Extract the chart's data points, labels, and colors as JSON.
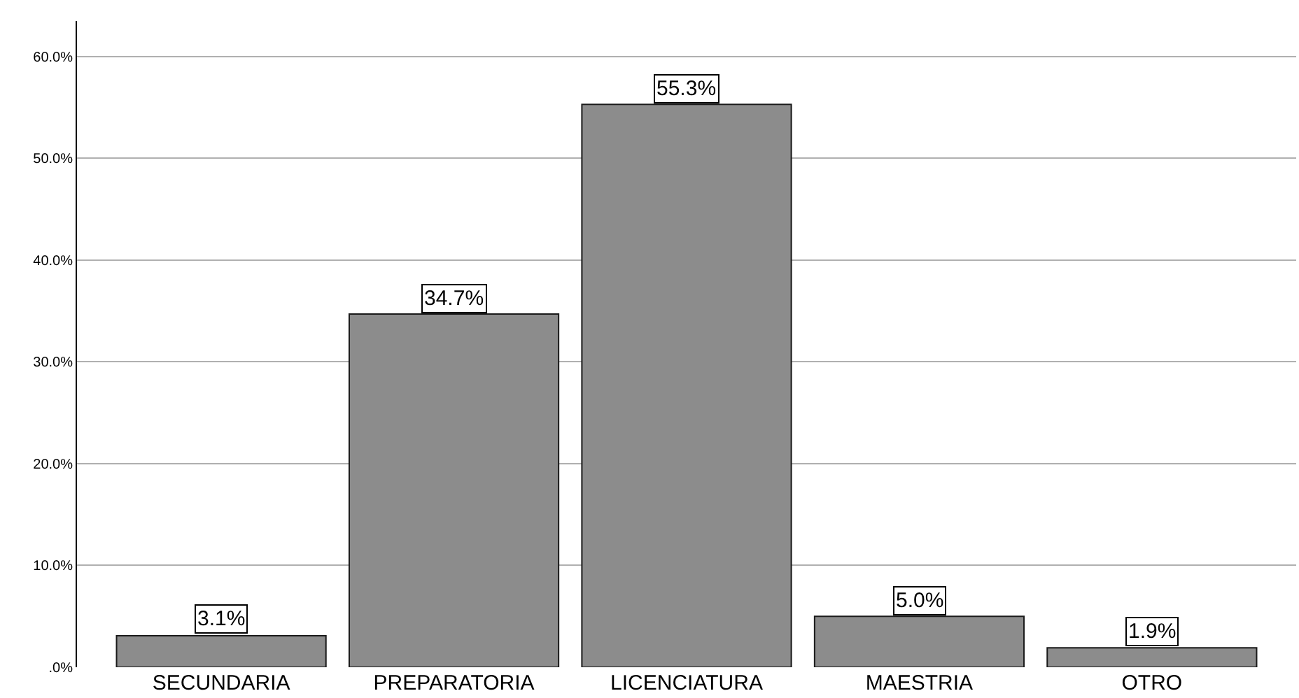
{
  "chart_data": {
    "type": "bar",
    "categories": [
      "SECUNDARIA",
      "PREPARATORIA",
      "LICENCIATURA",
      "MAESTRIA",
      "OTRO"
    ],
    "values": [
      3.1,
      34.7,
      55.3,
      5.0,
      1.9
    ],
    "value_labels": [
      "3.1%",
      "34.7%",
      "55.3%",
      "5.0%",
      "1.9%"
    ],
    "color": "#8c8c8c",
    "ylim": [
      0,
      63.5
    ],
    "yticks": [
      {
        "value": 0,
        "label": ".0%"
      },
      {
        "value": 10,
        "label": "10.0%"
      },
      {
        "value": 20,
        "label": "20.0%"
      },
      {
        "value": 30,
        "label": "30.0%"
      },
      {
        "value": 40,
        "label": "40.0%"
      },
      {
        "value": 50,
        "label": "50.0%"
      },
      {
        "value": 60,
        "label": "60.0%"
      }
    ],
    "grid": "y"
  }
}
